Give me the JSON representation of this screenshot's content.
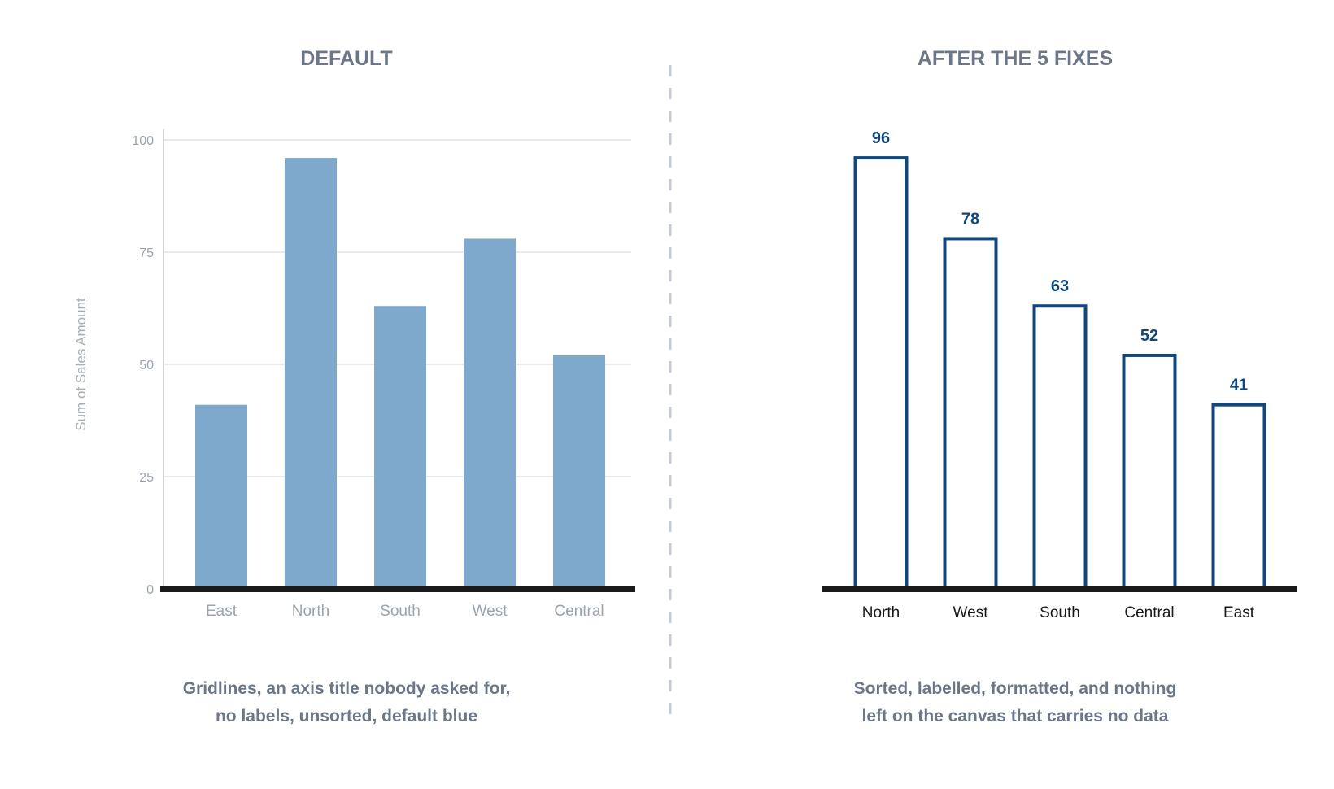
{
  "colors": {
    "default_bar": "#7fa8cd",
    "fixed_bar_stroke": "#12477e",
    "fixed_value_label": "#12477e",
    "gridline": "#dfe3e8",
    "baseline": "#1a1a1a",
    "title_text": "#6b7689",
    "divider": "#c5cbd3"
  },
  "panels": {
    "left": {
      "title": "DEFAULT",
      "caption": {
        "line1": "Gridlines, an axis title nobody asked for,",
        "line2": "no labels, unsorted, default blue"
      }
    },
    "right": {
      "title": "AFTER THE 5 FIXES",
      "caption": {
        "line1": "Sorted, labelled, formatted, and nothing",
        "line2": "left on the canvas that carries no data"
      }
    }
  },
  "chart_data": [
    {
      "type": "bar",
      "title": "DEFAULT",
      "categories": [
        "East",
        "North",
        "South",
        "West",
        "Central"
      ],
      "values": [
        41,
        96,
        63,
        78,
        52
      ],
      "ylabel": "Sum of Sales Amount",
      "xlabel": "",
      "ylim": [
        0,
        100
      ],
      "yticks": [
        "0",
        "25",
        "50",
        "75",
        "100"
      ],
      "grid": true,
      "data_labels": false,
      "bar_style": "filled"
    },
    {
      "type": "bar",
      "title": "AFTER THE 5 FIXES",
      "categories": [
        "North",
        "West",
        "South",
        "Central",
        "East"
      ],
      "values": [
        96,
        78,
        63,
        52,
        41
      ],
      "ylabel": "",
      "xlabel": "",
      "ylim": [
        0,
        100
      ],
      "grid": false,
      "data_labels": true,
      "bar_style": "outlined"
    }
  ]
}
